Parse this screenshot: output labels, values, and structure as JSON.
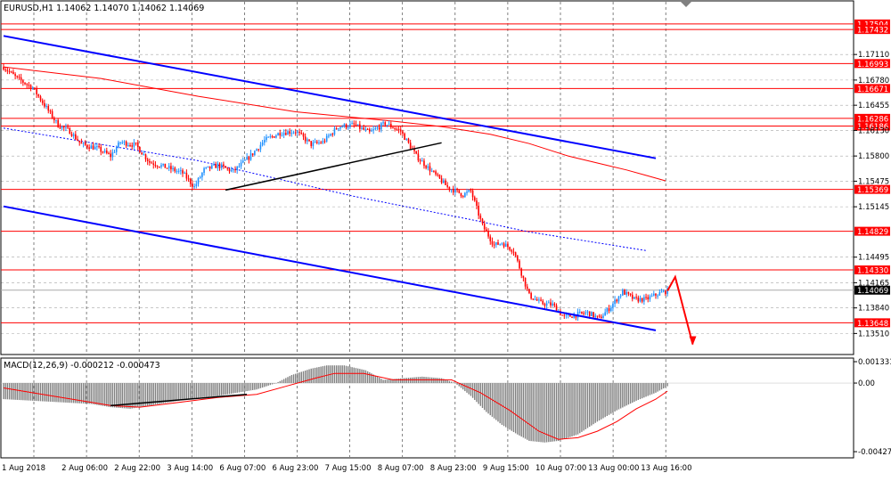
{
  "window": {
    "title": "EURUSD,H1  1.14062 1.14070 1.14062 1.14069"
  },
  "macd_label": "MACD(12,26,9) -0.000212 -0.000473",
  "colors": {
    "bull": "#1e90ff",
    "bear": "#ff0000",
    "level": "#ff0000",
    "channel": "#0000ff",
    "ma": "#ff0000",
    "ma_dotted": "#0000ff",
    "hist": "#808080",
    "signal": "#ff0000",
    "grid": "#000000",
    "price_line": "#a9a9a9",
    "arrow": "#ff0000"
  },
  "chart_data": [
    {
      "type": "candlestick",
      "title": "EURUSD,H1",
      "ylim": [
        1.1325,
        1.1779
      ],
      "price_ticks": [
        "1.17110",
        "1.16780",
        "1.16455",
        "1.16130",
        "1.15800",
        "1.15475",
        "1.15145",
        "1.14495",
        "1.14165",
        "1.13840",
        "1.13510"
      ],
      "levels": [
        {
          "value": 1.17504,
          "label": "1.17504"
        },
        {
          "value": 1.17432,
          "label": "1.17432"
        },
        {
          "value": 1.16993,
          "label": "1.16993"
        },
        {
          "value": 1.16671,
          "label": "1.16671"
        },
        {
          "value": 1.16286,
          "label": "1.16286"
        },
        {
          "value": 1.16186,
          "label": "1.16186"
        },
        {
          "value": 1.15369,
          "label": "1.15369"
        },
        {
          "value": 1.14829,
          "label": "1.14829"
        },
        {
          "value": 1.1433,
          "label": "1.14330"
        },
        {
          "value": 1.13648,
          "label": "1.13648"
        }
      ],
      "current_price": {
        "value": 1.14069,
        "label": "1.14069"
      },
      "x_labels": [
        "1 Aug 2018",
        "2 Aug 06:00",
        "2 Aug 22:00",
        "3 Aug 14:00",
        "6 Aug 07:00",
        "6 Aug 23:00",
        "7 Aug 15:00",
        "8 Aug 07:00",
        "8 Aug 23:00",
        "9 Aug 15:00",
        "10 Aug 07:00",
        "13 Aug 00:00",
        "13 Aug 16:00"
      ],
      "candle_anchors": [
        [
          0,
          1.1695
        ],
        [
          7,
          1.168
        ],
        [
          15,
          1.1668
        ],
        [
          22,
          1.1642
        ],
        [
          28,
          1.162
        ],
        [
          34,
          1.1612
        ],
        [
          40,
          1.1595
        ],
        [
          48,
          1.159
        ],
        [
          55,
          1.158
        ],
        [
          60,
          1.1598
        ],
        [
          68,
          1.1594
        ],
        [
          75,
          1.1572
        ],
        [
          84,
          1.1565
        ],
        [
          92,
          1.1558
        ],
        [
          98,
          1.154
        ],
        [
          103,
          1.1562
        ],
        [
          110,
          1.1568
        ],
        [
          118,
          1.156
        ],
        [
          126,
          1.1578
        ],
        [
          134,
          1.16
        ],
        [
          142,
          1.161
        ],
        [
          150,
          1.1612
        ],
        [
          158,
          1.1595
        ],
        [
          164,
          1.1598
        ],
        [
          172,
          1.1618
        ],
        [
          180,
          1.162
        ],
        [
          188,
          1.161
        ],
        [
          196,
          1.1622
        ],
        [
          204,
          1.1612
        ],
        [
          212,
          1.158
        ],
        [
          220,
          1.156
        ],
        [
          228,
          1.154
        ],
        [
          236,
          1.153
        ],
        [
          240,
          1.1535
        ],
        [
          246,
          1.149
        ],
        [
          252,
          1.1465
        ],
        [
          256,
          1.1468
        ],
        [
          262,
          1.1458
        ],
        [
          270,
          1.14
        ],
        [
          276,
          1.139
        ],
        [
          282,
          1.1388
        ],
        [
          288,
          1.1372
        ],
        [
          294,
          1.1375
        ],
        [
          300,
          1.1378
        ],
        [
          306,
          1.137
        ],
        [
          312,
          1.1386
        ],
        [
          318,
          1.1405
        ],
        [
          324,
          1.1395
        ],
        [
          330,
          1.1395
        ],
        [
          336,
          1.1402
        ],
        [
          341,
          1.1406
        ]
      ],
      "channel_upper": [
        [
          0,
          1.1735
        ],
        [
          335,
          1.1577
        ]
      ],
      "channel_lower": [
        [
          0,
          1.1515
        ],
        [
          335,
          1.1355
        ]
      ],
      "trend_support": [
        [
          114,
          1.1536
        ],
        [
          225,
          1.1597
        ]
      ],
      "ma_slow": [
        [
          0,
          1.1695
        ],
        [
          50,
          1.168
        ],
        [
          100,
          1.1657
        ],
        [
          150,
          1.1637
        ],
        [
          200,
          1.1625
        ],
        [
          225,
          1.1618
        ],
        [
          250,
          1.1608
        ],
        [
          270,
          1.1596
        ],
        [
          290,
          1.158
        ],
        [
          310,
          1.1568
        ],
        [
          320,
          1.1562
        ],
        [
          330,
          1.1555
        ],
        [
          340,
          1.1548
        ]
      ],
      "ma_dotted": [
        [
          0,
          1.1616
        ],
        [
          100,
          1.1574
        ],
        [
          180,
          1.1528
        ],
        [
          240,
          1.1498
        ],
        [
          270,
          1.1482
        ],
        [
          300,
          1.147
        ],
        [
          330,
          1.1458
        ]
      ],
      "forecast_arrow": [
        [
          341,
          1.1406
        ],
        [
          345,
          1.1424
        ],
        [
          354,
          1.1337
        ]
      ]
    },
    {
      "type": "bar",
      "title": "MACD(12,26,9) -0.000212 -0.000473",
      "ylim": [
        -0.0046,
        0.0015
      ],
      "y_ticks": [
        "0.001331",
        "0.00",
        "-0.004271"
      ],
      "macd_anchors": [
        [
          0,
          -0.001
        ],
        [
          15,
          -0.0011
        ],
        [
          30,
          -0.0012
        ],
        [
          45,
          -0.0013
        ],
        [
          55,
          -0.0015
        ],
        [
          65,
          -0.0016
        ],
        [
          75,
          -0.0014
        ],
        [
          90,
          -0.0011
        ],
        [
          100,
          -0.0009
        ],
        [
          110,
          -0.0008
        ],
        [
          120,
          -0.0006
        ],
        [
          130,
          -0.0004
        ],
        [
          140,
          0.0
        ],
        [
          148,
          0.0005
        ],
        [
          158,
          0.0009
        ],
        [
          166,
          0.0011
        ],
        [
          175,
          0.0011
        ],
        [
          186,
          0.0008
        ],
        [
          195,
          0.0002
        ],
        [
          205,
          0.0003
        ],
        [
          215,
          0.0004
        ],
        [
          225,
          0.0003
        ],
        [
          232,
          0.0
        ],
        [
          240,
          -0.0008
        ],
        [
          248,
          -0.0018
        ],
        [
          256,
          -0.0026
        ],
        [
          264,
          -0.0032
        ],
        [
          270,
          -0.0036
        ],
        [
          278,
          -0.0037
        ],
        [
          285,
          -0.0036
        ],
        [
          295,
          -0.0032
        ],
        [
          305,
          -0.0024
        ],
        [
          315,
          -0.0017
        ],
        [
          325,
          -0.0011
        ],
        [
          335,
          -0.0006
        ],
        [
          341,
          -0.0002
        ]
      ],
      "signal_anchors": [
        [
          0,
          -0.0003
        ],
        [
          20,
          -0.0007
        ],
        [
          40,
          -0.0011
        ],
        [
          55,
          -0.0014
        ],
        [
          70,
          -0.0015
        ],
        [
          90,
          -0.0012
        ],
        [
          110,
          -0.0009
        ],
        [
          130,
          -0.0007
        ],
        [
          145,
          -0.0002
        ],
        [
          160,
          0.0003
        ],
        [
          170,
          0.0006
        ],
        [
          185,
          0.0006
        ],
        [
          200,
          0.0002
        ],
        [
          215,
          0.0002
        ],
        [
          230,
          0.0002
        ],
        [
          245,
          -0.0006
        ],
        [
          260,
          -0.0017
        ],
        [
          275,
          -0.003
        ],
        [
          285,
          -0.0035
        ],
        [
          295,
          -0.0034
        ],
        [
          305,
          -0.003
        ],
        [
          315,
          -0.0024
        ],
        [
          325,
          -0.0016
        ],
        [
          335,
          -0.001
        ],
        [
          341,
          -0.0005
        ]
      ],
      "trend_line": [
        [
          55,
          -0.0014
        ],
        [
          125,
          -0.0007
        ]
      ]
    }
  ]
}
